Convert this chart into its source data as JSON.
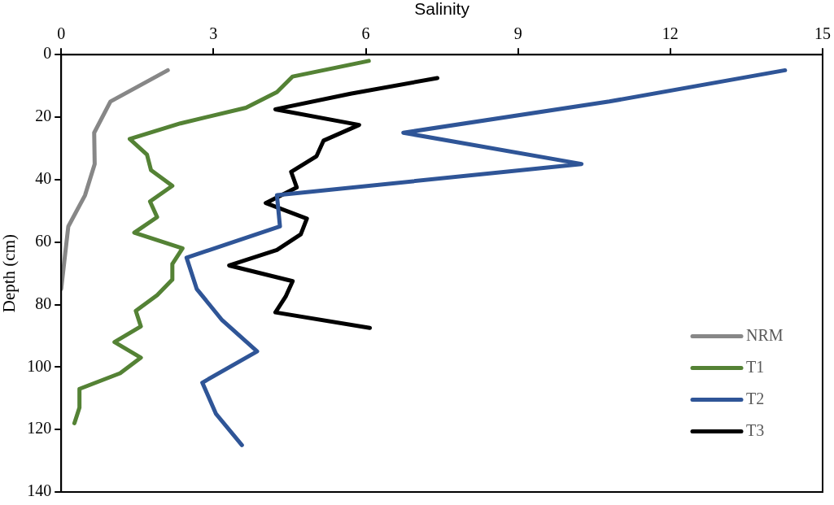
{
  "chart_data": {
    "type": "line",
    "xlabel": "Salinity",
    "ylabel": "Depth (cm)",
    "xlim": [
      0,
      15
    ],
    "xticks": [
      0,
      3,
      6,
      9,
      12,
      15
    ],
    "ylim": [
      140,
      0
    ],
    "yticks": [
      0,
      20,
      40,
      60,
      80,
      100,
      120,
      140
    ],
    "grid": false,
    "legend": "bottom right",
    "marker": "none",
    "line_style": "solid",
    "series": [
      {
        "name": "NRM",
        "color": "#878787",
        "x": [
          2.1,
          0.97,
          0.65,
          0.66,
          0.47,
          0.14,
          0
        ],
        "values": [
          5,
          15,
          25,
          35,
          45,
          55,
          75
        ]
      },
      {
        "name": "T1",
        "color": "#548235",
        "x": [
          6.06,
          4.56,
          4.25,
          3.64,
          2.35,
          1.35,
          1.69,
          1.77,
          2.19,
          1.75,
          1.89,
          1.44,
          2.39,
          2.19,
          2.19,
          1.89,
          1.47,
          1.57,
          1.05,
          1.57,
          1.16,
          0.36,
          0.36,
          0.26
        ],
        "values": [
          2,
          7,
          12,
          17,
          22,
          27,
          32,
          37,
          42,
          47,
          52,
          57,
          62,
          67,
          72,
          77,
          82,
          87,
          92,
          97,
          102,
          107,
          113,
          118
        ]
      },
      {
        "name": "T2",
        "color": "#2f5597",
        "x": [
          14.26,
          10.8,
          6.74,
          10.25,
          4.25,
          4.31,
          2.47,
          2.67,
          3.17,
          3.86,
          2.78,
          3.05,
          3.56
        ],
        "values": [
          5,
          15,
          25,
          35,
          45,
          55,
          65,
          75,
          85,
          95,
          105,
          115,
          125
        ]
      },
      {
        "name": "T3",
        "color": "#000000",
        "x": [
          7.41,
          5.7,
          4.22,
          5.87,
          5.17,
          5.03,
          4.53,
          4.64,
          4.03,
          4.84,
          4.72,
          4.25,
          3.31,
          4.56,
          4.42,
          4.22,
          6.08
        ],
        "values": [
          7.5,
          12.5,
          17.5,
          22.5,
          27.5,
          32.5,
          37.5,
          42.5,
          47.5,
          52.5,
          57.5,
          62.5,
          67.5,
          72.5,
          77.5,
          82.5,
          87.5
        ]
      }
    ]
  }
}
